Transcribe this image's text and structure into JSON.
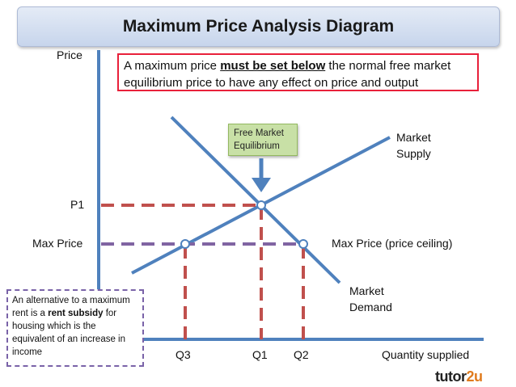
{
  "title": "Maximum Price Analysis Diagram",
  "note": {
    "part1": "A maximum price ",
    "emphasis": "must be set below",
    "part2": " the normal free market equilibrium price to have any effect on price and output"
  },
  "free_market_box": {
    "line1": "Free Market",
    "line2": "Equilibrium"
  },
  "alternative_box": {
    "part1": "An alternative to a maximum rent is a ",
    "emphasis": "rent subsidy",
    "part2": " for housing which is the equivalent of an increase in income"
  },
  "labels": {
    "y_axis": "Price",
    "x_axis": "Quantity supplied",
    "p1": "P1",
    "max_price": "Max Price",
    "max_price_ceiling": "Max Price (price ceiling)",
    "supply_line1": "Market",
    "supply_line2": "Supply",
    "demand_line1": "Market",
    "demand_line2": "Demand",
    "q3": "Q3",
    "q1": "Q1",
    "q2": "Q2"
  },
  "logo": {
    "part1": "tutor",
    "part2": "2u"
  },
  "colors": {
    "axis": "#4f81bd",
    "supply": "#4f81bd",
    "demand": "#4f81bd",
    "p1_dashed": "#c0504d",
    "max_price_dashed": "#8064a2",
    "note_border": "#e8203a",
    "fme_fill": "#c8e0a6",
    "logo_accent": "#e07b1e"
  }
}
